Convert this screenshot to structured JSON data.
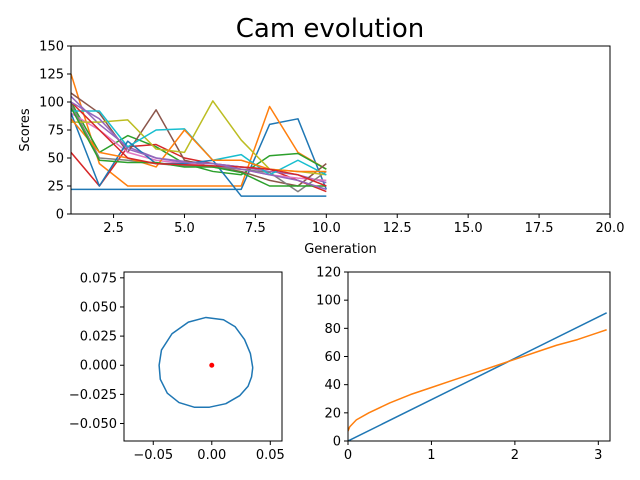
{
  "figure": {
    "title": "Cam evolution"
  },
  "chart_data": [
    {
      "id": "scores",
      "type": "line",
      "title": "",
      "xlabel": "Generation",
      "ylabel": "Scores",
      "xlim": [
        1,
        20
      ],
      "ylim": [
        0,
        150
      ],
      "xticks": [
        2.5,
        5.0,
        7.5,
        10.0,
        12.5,
        15.0,
        17.5,
        20.0
      ],
      "xtick_labels": [
        "2.5",
        "5.0",
        "7.5",
        "10.0",
        "12.5",
        "15.0",
        "17.5",
        "20.0"
      ],
      "yticks": [
        0,
        25,
        50,
        75,
        100,
        125,
        150
      ],
      "ytick_labels": [
        "0",
        "25",
        "50",
        "75",
        "100",
        "125",
        "150"
      ],
      "x": [
        1,
        2,
        3,
        4,
        5,
        6,
        7,
        8,
        9,
        10
      ],
      "series": [
        {
          "color": "#1f77b4",
          "values": [
            22,
            22,
            22,
            22,
            22,
            22,
            22,
            80,
            85,
            22
          ]
        },
        {
          "color": "#ff7f0e",
          "values": [
            125,
            45,
            25,
            25,
            25,
            25,
            25,
            96,
            55,
            40
          ]
        },
        {
          "color": "#2ca02c",
          "values": [
            100,
            55,
            70,
            60,
            45,
            38,
            35,
            52,
            54,
            40
          ]
        },
        {
          "color": "#d62728",
          "values": [
            55,
            25,
            60,
            62,
            50,
            45,
            42,
            40,
            30,
            20
          ]
        },
        {
          "color": "#9467bd",
          "values": [
            105,
            80,
            60,
            50,
            47,
            45,
            42,
            38,
            35,
            28
          ]
        },
        {
          "color": "#8c564b",
          "values": [
            108,
            90,
            55,
            93,
            48,
            42,
            38,
            30,
            25,
            45
          ]
        },
        {
          "color": "#e377c2",
          "values": [
            90,
            75,
            55,
            48,
            45,
            43,
            40,
            35,
            32,
            30
          ]
        },
        {
          "color": "#7f7f7f",
          "values": [
            98,
            50,
            48,
            45,
            43,
            42,
            40,
            37,
            20,
            38
          ]
        },
        {
          "color": "#bcbd22",
          "values": [
            82,
            82,
            84,
            58,
            55,
            101,
            66,
            40,
            38,
            35
          ]
        },
        {
          "color": "#17becf",
          "values": [
            92,
            92,
            60,
            75,
            76,
            48,
            53,
            35,
            48,
            35
          ]
        },
        {
          "color": "#1f77b4",
          "values": [
            90,
            25,
            65,
            45,
            45,
            48,
            16,
            16,
            16,
            16
          ]
        },
        {
          "color": "#ff7f0e",
          "values": [
            85,
            55,
            50,
            42,
            75,
            48,
            48,
            40,
            38,
            38
          ]
        },
        {
          "color": "#2ca02c",
          "values": [
            95,
            48,
            46,
            46,
            42,
            42,
            37,
            25,
            25,
            25
          ]
        },
        {
          "color": "#d62728",
          "values": [
            100,
            75,
            50,
            45,
            44,
            43,
            42,
            40,
            35,
            25
          ]
        },
        {
          "color": "#9467bd",
          "values": [
            100,
            85,
            58,
            50,
            46,
            45,
            40,
            35,
            30,
            22
          ]
        }
      ]
    },
    {
      "id": "cam-profile",
      "type": "line",
      "title": "",
      "xlabel": "",
      "ylabel": "",
      "xlim": [
        -0.075,
        0.06
      ],
      "ylim": [
        -0.065,
        0.08
      ],
      "xticks": [
        -0.05,
        0.0,
        0.05
      ],
      "xtick_labels": [
        "−0.05",
        "0.00",
        "0.05"
      ],
      "yticks": [
        -0.05,
        -0.025,
        0.0,
        0.025,
        0.05,
        0.075
      ],
      "ytick_labels": [
        "−0.050",
        "−0.025",
        "0.000",
        "0.025",
        "0.050",
        "0.075"
      ],
      "profile": {
        "color": "#1f77b4",
        "x": [
          0.035,
          0.033,
          0.028,
          0.02,
          0.01,
          -0.005,
          -0.02,
          -0.034,
          -0.043,
          -0.045,
          -0.044,
          -0.038,
          -0.028,
          -0.015,
          -0.002,
          0.012,
          0.024,
          0.031,
          0.034,
          0.035
        ],
        "y": [
          -0.002,
          0.01,
          0.022,
          0.033,
          0.039,
          0.041,
          0.037,
          0.027,
          0.013,
          0.0,
          -0.012,
          -0.024,
          -0.032,
          -0.036,
          -0.036,
          -0.033,
          -0.026,
          -0.018,
          -0.01,
          -0.002
        ]
      },
      "center_point": {
        "x": 0.0,
        "y": 0.0,
        "color": "#ff0000"
      }
    },
    {
      "id": "curves",
      "type": "line",
      "title": "",
      "xlabel": "",
      "ylabel": "",
      "xlim": [
        0,
        3.14
      ],
      "ylim": [
        0,
        120
      ],
      "xticks": [
        0,
        1,
        2,
        3
      ],
      "xtick_labels": [
        "0",
        "1",
        "2",
        "3"
      ],
      "yticks": [
        0,
        20,
        40,
        60,
        80,
        100,
        120
      ],
      "ytick_labels": [
        "0",
        "20",
        "40",
        "60",
        "80",
        "100",
        "120"
      ],
      "series": [
        {
          "color": "#1f77b4",
          "x": [
            0,
            3.1
          ],
          "values": [
            0,
            91
          ]
        },
        {
          "color": "#ff7f0e",
          "x": [
            0,
            0.02,
            0.1,
            0.25,
            0.5,
            0.75,
            1.0,
            1.25,
            1.5,
            1.75,
            2.0,
            2.25,
            2.5,
            2.75,
            3.0,
            3.1
          ],
          "values": [
            7,
            10,
            15,
            20,
            27,
            33,
            38,
            43,
            48,
            53,
            58,
            63,
            68,
            72,
            77,
            79
          ]
        }
      ]
    }
  ]
}
